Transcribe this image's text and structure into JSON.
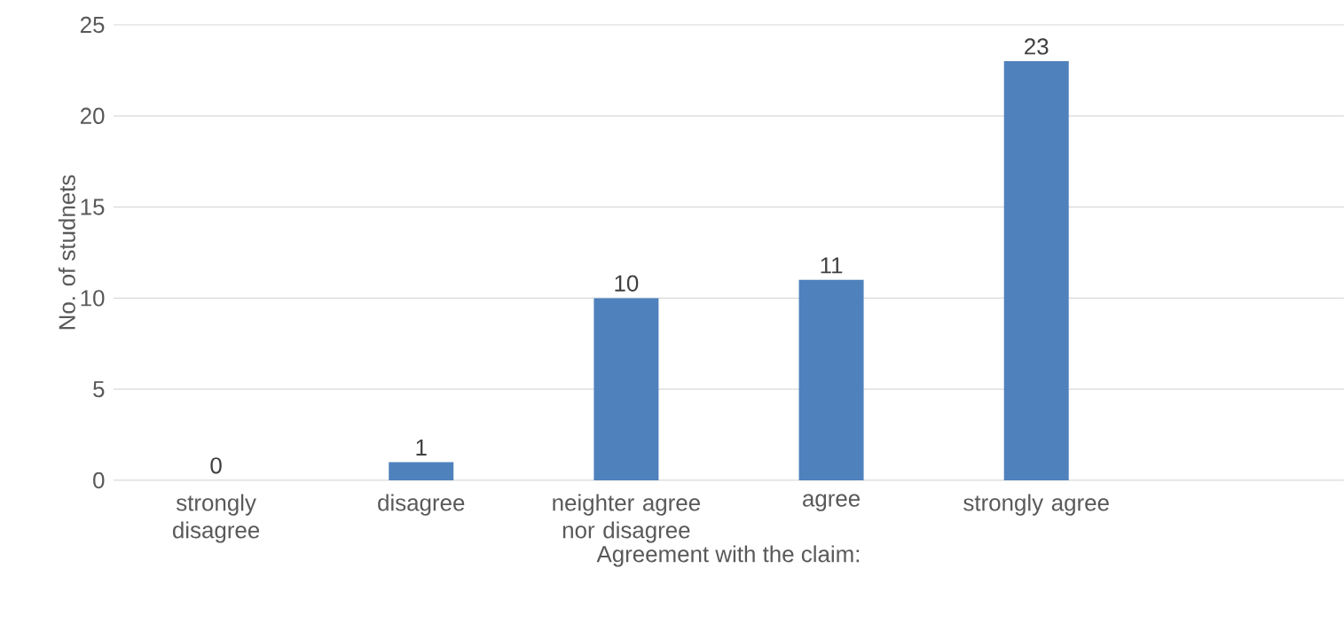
{
  "chart_data": {
    "type": "bar",
    "xlabel": "Agreement with the claim:",
    "ylabel": "No. of studnets",
    "categories": [
      "strongly disagree",
      "disagree",
      "neighter agree nor disagree",
      "agree",
      "strongly agree",
      null
    ],
    "values": [
      0,
      1,
      10,
      11,
      23,
      null
    ],
    "color": "#4f81bd",
    "ylim": [
      0,
      25
    ],
    "yticks": [
      0,
      5,
      10,
      15,
      20,
      25
    ],
    "grid": "y",
    "data_labels": true
  }
}
